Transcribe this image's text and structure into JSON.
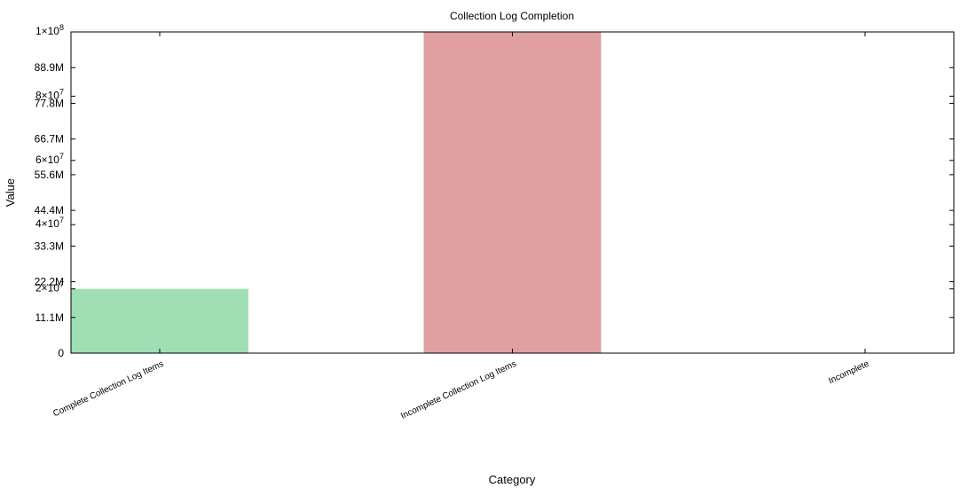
{
  "chart_data": {
    "type": "bar",
    "title": "Collection Log Completion",
    "xlabel": "Category",
    "ylabel": "Value",
    "categories": [
      "Complete Collection Log Items",
      "Incomplete Collection Log Items",
      "Incomplete"
    ],
    "values": [
      20000000,
      100000000,
      0
    ],
    "colors": [
      "#a0dfb3",
      "#e09fa0",
      "#e09fa0"
    ],
    "ylim": [
      0,
      100000000
    ],
    "grid": false,
    "left_ticks": [
      {
        "value": 0,
        "label": "0"
      },
      {
        "value": 11111111,
        "label": "11.1M"
      },
      {
        "value": 22222222,
        "label": "22.2M"
      },
      {
        "value": 33333333,
        "label": "33.3M"
      },
      {
        "value": 44444444,
        "label": "44.4M"
      },
      {
        "value": 55555556,
        "label": "55.6M"
      },
      {
        "value": 66666667,
        "label": "66.7M"
      },
      {
        "value": 77777778,
        "label": "77.8M"
      },
      {
        "value": 88888889,
        "label": "88.9M"
      }
    ],
    "sci_ticks": [
      {
        "value": 20000000,
        "mantissa": "2",
        "exponent": "7"
      },
      {
        "value": 40000000,
        "mantissa": "4",
        "exponent": "7"
      },
      {
        "value": 60000000,
        "mantissa": "6",
        "exponent": "7"
      },
      {
        "value": 80000000,
        "mantissa": "8",
        "exponent": "7"
      },
      {
        "value": 100000000,
        "mantissa": "1",
        "exponent": "8"
      }
    ]
  }
}
